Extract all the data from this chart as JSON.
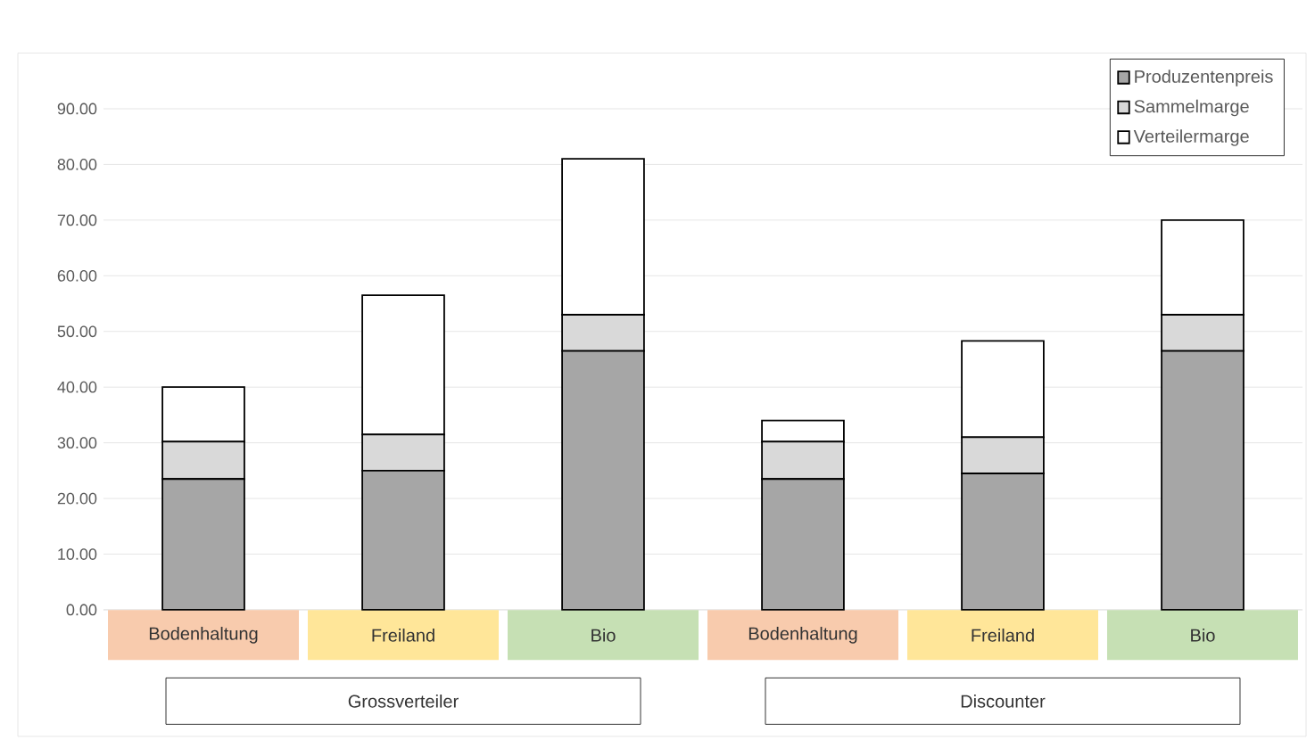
{
  "chart_data": {
    "type": "bar",
    "stacked": true,
    "categories": [
      "Bodenhaltung",
      "Freiland",
      "Bio",
      "Bodenhaltung",
      "Freiland",
      "Bio"
    ],
    "series": [
      {
        "name": "Produzentenpreis",
        "color": "#a6a6a6",
        "values": [
          23.5,
          25.0,
          46.5,
          23.5,
          24.5,
          46.5
        ]
      },
      {
        "name": "Sammelmarge",
        "color": "#d9d9d9",
        "values": [
          6.7,
          6.5,
          6.5,
          6.7,
          6.5,
          6.5
        ]
      },
      {
        "name": "Verteilermarge",
        "color": "#ffffff",
        "values": [
          9.8,
          25.0,
          28.0,
          3.8,
          17.3,
          17.0
        ]
      }
    ],
    "ylim": [
      0,
      100
    ],
    "yticks": [
      {
        "value": 0,
        "label": "0.00"
      },
      {
        "value": 10,
        "label": "10.00"
      },
      {
        "value": 20,
        "label": "20.00"
      },
      {
        "value": 30,
        "label": "30.00"
      },
      {
        "value": 40,
        "label": "40.00"
      },
      {
        "value": 50,
        "label": "50.00"
      },
      {
        "value": 60,
        "label": "60.00"
      },
      {
        "value": 70,
        "label": "70.00"
      },
      {
        "value": 80,
        "label": "80.00"
      },
      {
        "value": 90,
        "label": "90.00"
      }
    ],
    "grid": "y",
    "legend": "top right",
    "annotations": [
      "Grossverteiler",
      "Discounter"
    ]
  }
}
